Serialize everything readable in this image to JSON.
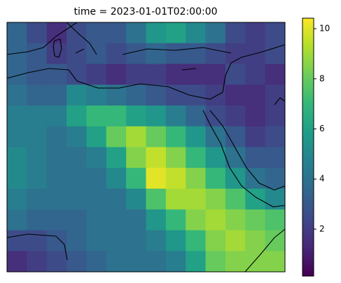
{
  "chart_data": {
    "type": "heatmap",
    "title": "time = 2023-01-01T02:00:00",
    "colormap": "viridis",
    "clim": [
      0.13,
      10.42
    ],
    "cticks": [
      2,
      4,
      6,
      8,
      10
    ],
    "values": [
      [
        3.5,
        2.5,
        1.5,
        2.5,
        3,
        3,
        4,
        5.5,
        6,
        5,
        4,
        2.5,
        2,
        2.5
      ],
      [
        3.5,
        3,
        2,
        2.5,
        3,
        2.5,
        3,
        3.5,
        3,
        3,
        2.5,
        2,
        2,
        2.5
      ],
      [
        3.5,
        3,
        3,
        2.5,
        2,
        1.5,
        2,
        2,
        1.5,
        1.5,
        1.5,
        2.5,
        2,
        1.5
      ],
      [
        4,
        3.5,
        3.5,
        5,
        4.5,
        4,
        3.5,
        3,
        2.5,
        2.5,
        2,
        1.5,
        1.5,
        2
      ],
      [
        4.5,
        4.5,
        4.5,
        6,
        7,
        7,
        6,
        5.5,
        4.5,
        3.5,
        2.5,
        2,
        1.5,
        2
      ],
      [
        4.5,
        4.5,
        4,
        4.5,
        6,
        8,
        9,
        8,
        7,
        5.5,
        4,
        3,
        2,
        2.5
      ],
      [
        5,
        4.5,
        4,
        4,
        4.5,
        6,
        8.5,
        9.5,
        8.5,
        7,
        5.5,
        4,
        3,
        3
      ],
      [
        5,
        4.5,
        4,
        4,
        4,
        5,
        7,
        10,
        9.5,
        8.5,
        7,
        5.5,
        4,
        3.5
      ],
      [
        4.5,
        4,
        4,
        4,
        4,
        4,
        5,
        7.5,
        9,
        9,
        8.5,
        7.5,
        6,
        5
      ],
      [
        4,
        3.5,
        3.5,
        3.5,
        4,
        4,
        4,
        5.5,
        7,
        8.5,
        9,
        8.5,
        8,
        7.5
      ],
      [
        2.5,
        2.5,
        3,
        3.5,
        4,
        4,
        4,
        4.5,
        5.5,
        7,
        8.5,
        9,
        8.5,
        8
      ],
      [
        1.5,
        2,
        2.5,
        3,
        3.5,
        4,
        4,
        4,
        4.5,
        6,
        8,
        8.5,
        8.5,
        8.5
      ]
    ]
  }
}
